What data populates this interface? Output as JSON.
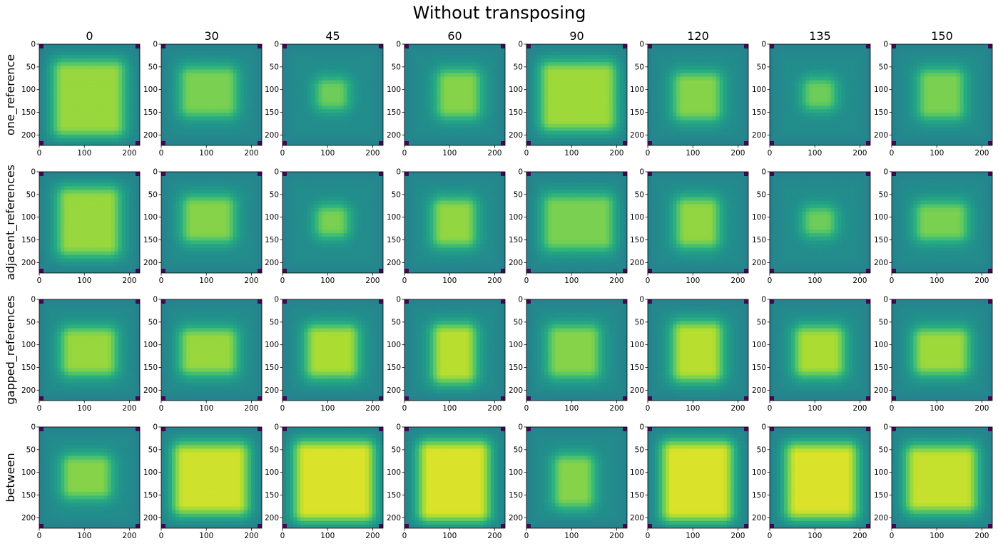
{
  "chart_data": {
    "type": "heatmap",
    "title": "Without transposing",
    "columns": [
      "0",
      "30",
      "45",
      "60",
      "90",
      "120",
      "135",
      "150"
    ],
    "rows": [
      "one_reference",
      "adjacent_references",
      "gapped_references",
      "between"
    ],
    "axis_range": [
      0,
      223
    ],
    "x_ticks": [
      "0",
      "100",
      "200"
    ],
    "y_ticks": [
      "0",
      "50",
      "100",
      "150",
      "200"
    ],
    "colormap": "viridis",
    "colors": {
      "low": "#440154",
      "mid": "#21918c",
      "high": "#fde725"
    },
    "grid": false,
    "panels": [
      [
        {
          "cx": 110,
          "cy": 120,
          "hw": 55,
          "hh": 60,
          "peak": 0.85
        },
        {
          "cx": 105,
          "cy": 105,
          "hw": 40,
          "hh": 32,
          "peak": 0.8
        },
        {
          "cx": 110,
          "cy": 110,
          "hw": 14,
          "hh": 12,
          "peak": 0.78
        },
        {
          "cx": 120,
          "cy": 110,
          "hw": 25,
          "hh": 30,
          "peak": 0.82
        },
        {
          "cx": 115,
          "cy": 115,
          "hw": 60,
          "hh": 52,
          "peak": 0.86
        },
        {
          "cx": 110,
          "cy": 115,
          "hw": 30,
          "hh": 30,
          "peak": 0.82
        },
        {
          "cx": 110,
          "cy": 110,
          "hw": 14,
          "hh": 12,
          "peak": 0.78
        },
        {
          "cx": 110,
          "cy": 110,
          "hw": 28,
          "hh": 32,
          "peak": 0.8
        }
      ],
      [
        {
          "cx": 110,
          "cy": 110,
          "hw": 45,
          "hh": 52,
          "peak": 0.85
        },
        {
          "cx": 105,
          "cy": 105,
          "hw": 35,
          "hh": 28,
          "peak": 0.82
        },
        {
          "cx": 110,
          "cy": 110,
          "hw": 14,
          "hh": 12,
          "peak": 0.8
        },
        {
          "cx": 110,
          "cy": 112,
          "hw": 25,
          "hh": 30,
          "peak": 0.84
        },
        {
          "cx": 115,
          "cy": 112,
          "hw": 55,
          "hh": 38,
          "peak": 0.8
        },
        {
          "cx": 110,
          "cy": 112,
          "hw": 25,
          "hh": 32,
          "peak": 0.84
        },
        {
          "cx": 110,
          "cy": 110,
          "hw": 14,
          "hh": 10,
          "peak": 0.78
        },
        {
          "cx": 110,
          "cy": 110,
          "hw": 35,
          "hh": 20,
          "peak": 0.8
        }
      ],
      [
        {
          "cx": 110,
          "cy": 115,
          "hw": 38,
          "hh": 30,
          "peak": 0.85
        },
        {
          "cx": 105,
          "cy": 115,
          "hw": 40,
          "hh": 28,
          "peak": 0.85
        },
        {
          "cx": 110,
          "cy": 115,
          "hw": 35,
          "hh": 35,
          "peak": 0.88
        },
        {
          "cx": 110,
          "cy": 120,
          "hw": 25,
          "hh": 42,
          "peak": 0.9
        },
        {
          "cx": 105,
          "cy": 115,
          "hw": 35,
          "hh": 35,
          "peak": 0.82
        },
        {
          "cx": 110,
          "cy": 115,
          "hw": 32,
          "hh": 42,
          "peak": 0.9
        },
        {
          "cx": 110,
          "cy": 115,
          "hw": 32,
          "hh": 32,
          "peak": 0.88
        },
        {
          "cx": 110,
          "cy": 115,
          "hw": 38,
          "hh": 28,
          "peak": 0.86
        }
      ],
      [
        {
          "cx": 105,
          "cy": 110,
          "hw": 32,
          "hh": 25,
          "peak": 0.82
        },
        {
          "cx": 110,
          "cy": 115,
          "hw": 60,
          "hh": 55,
          "peak": 0.93
        },
        {
          "cx": 115,
          "cy": 120,
          "hw": 65,
          "hh": 65,
          "peak": 0.95
        },
        {
          "cx": 110,
          "cy": 120,
          "hw": 55,
          "hh": 65,
          "peak": 0.95
        },
        {
          "cx": 105,
          "cy": 120,
          "hw": 22,
          "hh": 35,
          "peak": 0.82
        },
        {
          "cx": 110,
          "cy": 120,
          "hw": 55,
          "hh": 65,
          "peak": 0.95
        },
        {
          "cx": 115,
          "cy": 120,
          "hw": 55,
          "hh": 60,
          "peak": 0.95
        },
        {
          "cx": 110,
          "cy": 115,
          "hw": 55,
          "hh": 50,
          "peak": 0.92
        }
      ]
    ]
  }
}
